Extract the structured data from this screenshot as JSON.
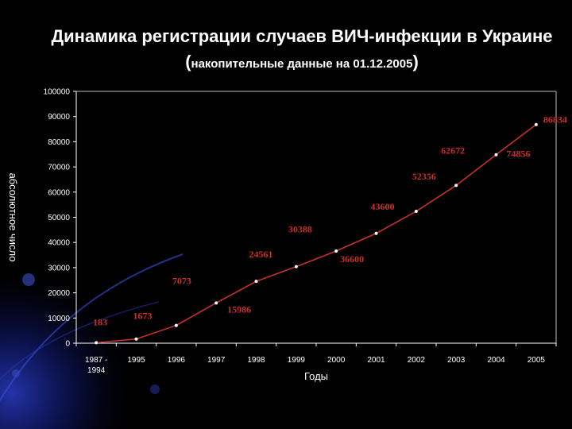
{
  "title_main": "Динамика регистрации случаев ВИЧ-инфекции в Украине (",
  "title_small": "накопительные данные на 01.12.2005",
  "title_close": ")",
  "colors": {
    "background": "#000000",
    "series": "#c8302a",
    "text": "#ffffff",
    "axis": "#ffffff"
  },
  "chart_data": {
    "type": "line",
    "title": "Динамика регистрации случаев ВИЧ-инфекции в Украине (накопительные данные на 01.12.2005)",
    "xlabel": "Годы",
    "ylabel": "абсолютное число",
    "ylim": [
      0,
      100000
    ],
    "yticks": [
      0,
      10000,
      20000,
      30000,
      40000,
      50000,
      60000,
      70000,
      80000,
      90000,
      100000
    ],
    "categories": [
      "1987 - 1994",
      "1995",
      "1996",
      "1997",
      "1998",
      "1999",
      "2000",
      "2001",
      "2002",
      "2003",
      "2004",
      "2005"
    ],
    "category_lines": [
      [
        "1987 -",
        "1994"
      ],
      [
        "1995"
      ],
      [
        "1996"
      ],
      [
        "1997"
      ],
      [
        "1998"
      ],
      [
        "1999"
      ],
      [
        "2000"
      ],
      [
        "2001"
      ],
      [
        "2002"
      ],
      [
        "2003"
      ],
      [
        "2004"
      ],
      [
        "2005"
      ]
    ],
    "values": [
      183,
      1673,
      7073,
      15986,
      24561,
      30388,
      36600,
      43600,
      52356,
      62672,
      74856,
      86834
    ],
    "data_labels": [
      "183",
      "1673",
      "7073",
      "15986",
      "24561",
      "30388",
      "36600",
      "43600",
      "52356",
      "62672",
      "74856",
      "86834"
    ],
    "grid": false,
    "legend": "none"
  }
}
